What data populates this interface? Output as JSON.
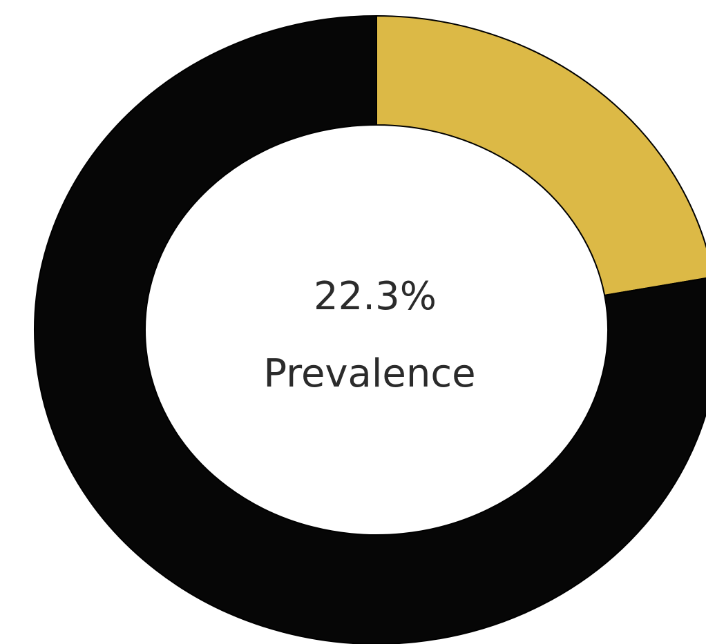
{
  "chart_data": {
    "type": "pie",
    "variant": "donut",
    "slices": [
      {
        "label": "Prevalence",
        "value": 22.3,
        "color": "#dcb946"
      },
      {
        "label": "",
        "value": 77.7,
        "color": "#060606"
      }
    ],
    "start_angle_deg": 0,
    "direction": "clockwise",
    "center_value": "22.3%",
    "center_label": "Prevalence"
  }
}
